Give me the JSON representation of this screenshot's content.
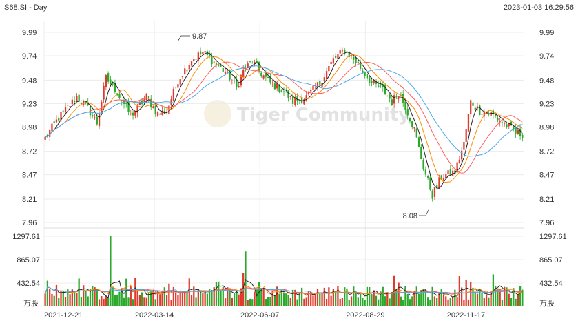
{
  "header": {
    "symbol": "S68.SI - Day",
    "timestamp": "2023-01-03 16:29:56"
  },
  "watermark": "Tiger Community",
  "colors": {
    "up": "#e03a2c",
    "down": "#2aa92a",
    "ma1": "#222222",
    "ma2": "#ff8a00",
    "ma3": "#ff5a5a",
    "ma4": "#4aa8e8",
    "grid": "#ececec",
    "axis_text": "#333333"
  },
  "chart_data": [
    {
      "type": "candlestick",
      "title": "",
      "ylim": [
        7.96,
        9.99
      ],
      "y_ticks": [
        "9.99",
        "9.74",
        "9.48",
        "9.23",
        "8.98",
        "8.72",
        "8.47",
        "8.21",
        "7.96"
      ],
      "x_ticks": [
        "2021-12-21",
        "2022-03-14",
        "2022-06-07",
        "2022-08-29",
        "2022-11-17"
      ],
      "annotations": [
        {
          "label": "9.87",
          "value": 9.87
        },
        {
          "label": "8.08",
          "value": 8.08
        }
      ],
      "close_path": [
        [
          0,
          8.86
        ],
        [
          6,
          9.08
        ],
        [
          14,
          9.3
        ],
        [
          19,
          9.18
        ],
        [
          23,
          9.02
        ],
        [
          27,
          9.5
        ],
        [
          32,
          9.35
        ],
        [
          38,
          9.1
        ],
        [
          45,
          9.3
        ],
        [
          50,
          9.12
        ],
        [
          54,
          9.15
        ],
        [
          59,
          9.48
        ],
        [
          65,
          9.7
        ],
        [
          70,
          9.78
        ],
        [
          76,
          9.65
        ],
        [
          81,
          9.55
        ],
        [
          85,
          9.4
        ],
        [
          88,
          9.58
        ],
        [
          92,
          9.68
        ],
        [
          96,
          9.55
        ],
        [
          100,
          9.45
        ],
        [
          105,
          9.38
        ],
        [
          110,
          9.25
        ],
        [
          116,
          9.3
        ],
        [
          122,
          9.45
        ],
        [
          128,
          9.7
        ],
        [
          133,
          9.8
        ],
        [
          138,
          9.68
        ],
        [
          145,
          9.45
        ],
        [
          150,
          9.38
        ],
        [
          154,
          9.25
        ],
        [
          157,
          9.35
        ],
        [
          160,
          9.2
        ],
        [
          164,
          8.95
        ],
        [
          168,
          8.55
        ],
        [
          172,
          8.25
        ],
        [
          176,
          8.45
        ],
        [
          182,
          8.5
        ],
        [
          186,
          8.8
        ],
        [
          189,
          9.25
        ],
        [
          193,
          9.15
        ],
        [
          198,
          9.12
        ],
        [
          202,
          9.05
        ],
        [
          206,
          8.98
        ],
        [
          209,
          8.92
        ],
        [
          212,
          8.9
        ]
      ],
      "bars": 213
    },
    {
      "type": "bar",
      "title": "",
      "ylim": [
        0,
        1297.61
      ],
      "y_ticks": [
        "1297.61",
        "865.07",
        "432.54"
      ],
      "y_unit": "万股",
      "spikes": [
        {
          "bar": 29,
          "value": 1297.61
        },
        {
          "bar": 89,
          "value": 1015
        }
      ]
    }
  ]
}
